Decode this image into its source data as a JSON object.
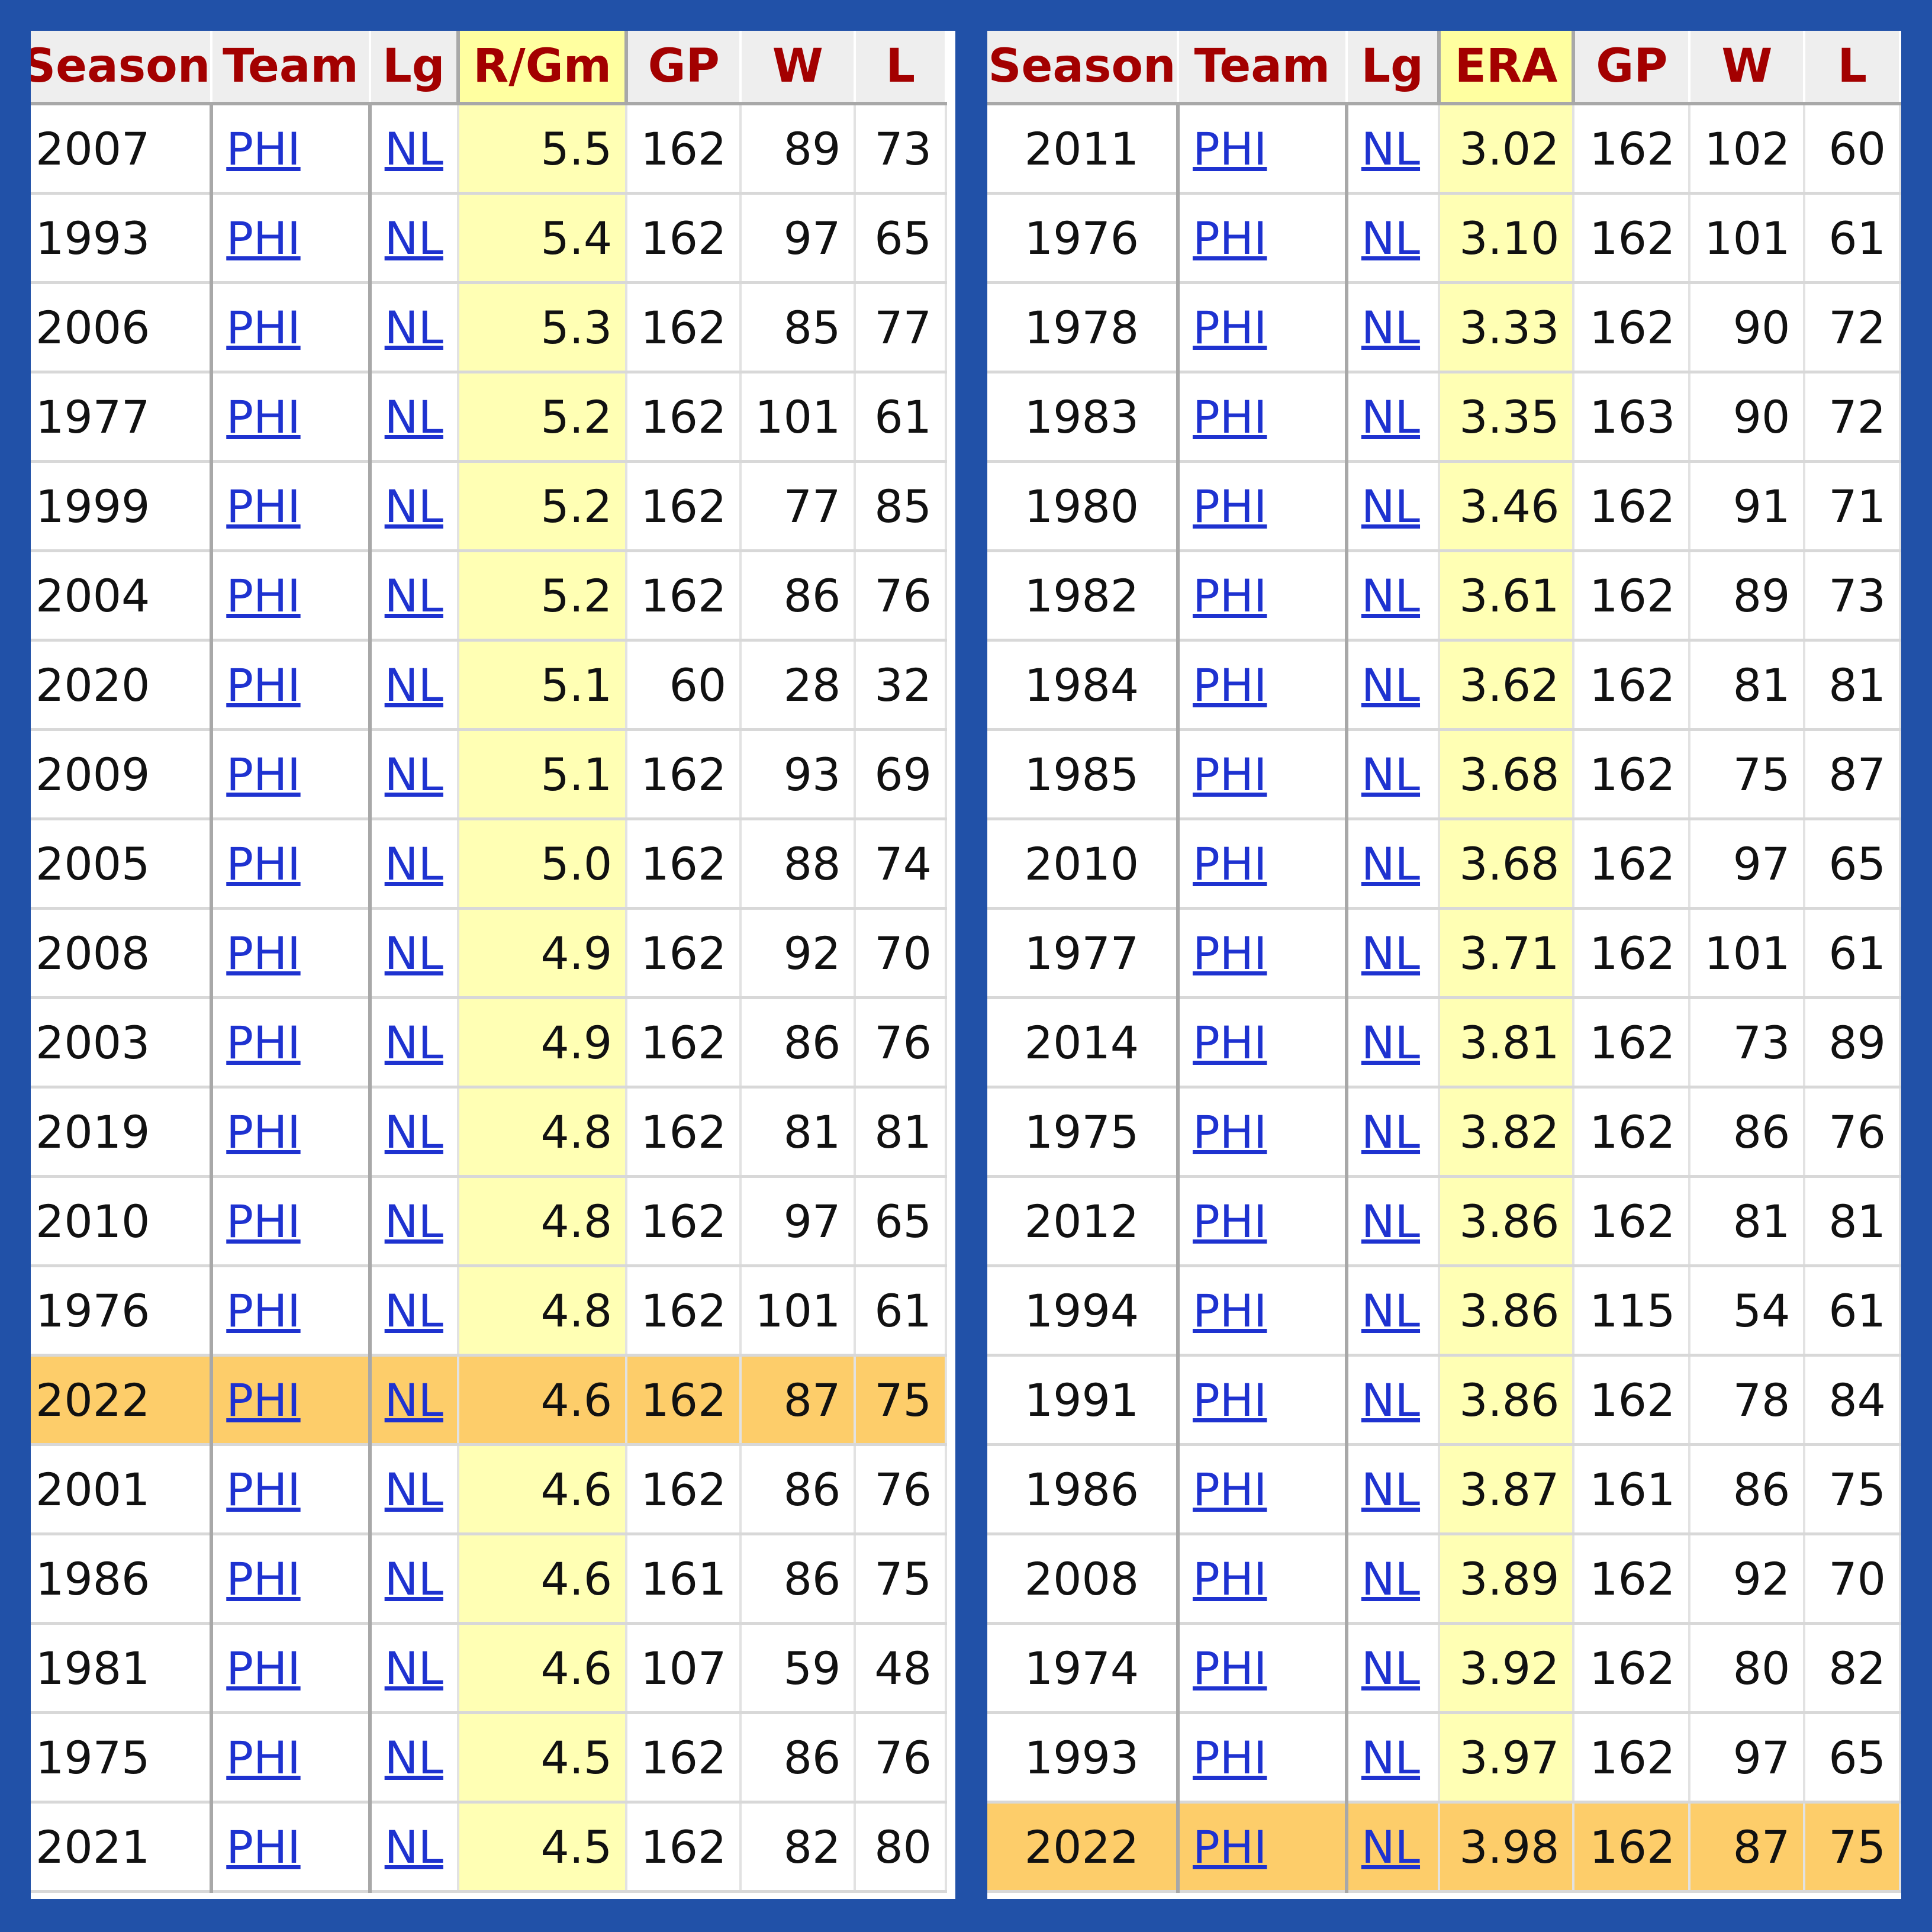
{
  "left_table": {
    "columns": [
      "Season",
      "Team",
      "Lg",
      "R/Gm",
      "GP",
      "W",
      "L"
    ],
    "highlight_season": "2022",
    "rows": [
      {
        "season": "2007",
        "team": "PHI",
        "lg": "NL",
        "stat": "5.5",
        "gp": "162",
        "w": "89",
        "l": "73"
      },
      {
        "season": "1993",
        "team": "PHI",
        "lg": "NL",
        "stat": "5.4",
        "gp": "162",
        "w": "97",
        "l": "65"
      },
      {
        "season": "2006",
        "team": "PHI",
        "lg": "NL",
        "stat": "5.3",
        "gp": "162",
        "w": "85",
        "l": "77"
      },
      {
        "season": "1977",
        "team": "PHI",
        "lg": "NL",
        "stat": "5.2",
        "gp": "162",
        "w": "101",
        "l": "61"
      },
      {
        "season": "1999",
        "team": "PHI",
        "lg": "NL",
        "stat": "5.2",
        "gp": "162",
        "w": "77",
        "l": "85"
      },
      {
        "season": "2004",
        "team": "PHI",
        "lg": "NL",
        "stat": "5.2",
        "gp": "162",
        "w": "86",
        "l": "76"
      },
      {
        "season": "2020",
        "team": "PHI",
        "lg": "NL",
        "stat": "5.1",
        "gp": "60",
        "w": "28",
        "l": "32"
      },
      {
        "season": "2009",
        "team": "PHI",
        "lg": "NL",
        "stat": "5.1",
        "gp": "162",
        "w": "93",
        "l": "69"
      },
      {
        "season": "2005",
        "team": "PHI",
        "lg": "NL",
        "stat": "5.0",
        "gp": "162",
        "w": "88",
        "l": "74"
      },
      {
        "season": "2008",
        "team": "PHI",
        "lg": "NL",
        "stat": "4.9",
        "gp": "162",
        "w": "92",
        "l": "70"
      },
      {
        "season": "2003",
        "team": "PHI",
        "lg": "NL",
        "stat": "4.9",
        "gp": "162",
        "w": "86",
        "l": "76"
      },
      {
        "season": "2019",
        "team": "PHI",
        "lg": "NL",
        "stat": "4.8",
        "gp": "162",
        "w": "81",
        "l": "81"
      },
      {
        "season": "2010",
        "team": "PHI",
        "lg": "NL",
        "stat": "4.8",
        "gp": "162",
        "w": "97",
        "l": "65"
      },
      {
        "season": "1976",
        "team": "PHI",
        "lg": "NL",
        "stat": "4.8",
        "gp": "162",
        "w": "101",
        "l": "61"
      },
      {
        "season": "2022",
        "team": "PHI",
        "lg": "NL",
        "stat": "4.6",
        "gp": "162",
        "w": "87",
        "l": "75"
      },
      {
        "season": "2001",
        "team": "PHI",
        "lg": "NL",
        "stat": "4.6",
        "gp": "162",
        "w": "86",
        "l": "76"
      },
      {
        "season": "1986",
        "team": "PHI",
        "lg": "NL",
        "stat": "4.6",
        "gp": "161",
        "w": "86",
        "l": "75"
      },
      {
        "season": "1981",
        "team": "PHI",
        "lg": "NL",
        "stat": "4.6",
        "gp": "107",
        "w": "59",
        "l": "48"
      },
      {
        "season": "1975",
        "team": "PHI",
        "lg": "NL",
        "stat": "4.5",
        "gp": "162",
        "w": "86",
        "l": "76"
      },
      {
        "season": "2021",
        "team": "PHI",
        "lg": "NL",
        "stat": "4.5",
        "gp": "162",
        "w": "82",
        "l": "80"
      }
    ]
  },
  "right_table": {
    "columns": [
      "Season",
      "Team",
      "Lg",
      "ERA",
      "GP",
      "W",
      "L"
    ],
    "highlight_season": "2022",
    "rows": [
      {
        "season": "2011",
        "team": "PHI",
        "lg": "NL",
        "stat": "3.02",
        "gp": "162",
        "w": "102",
        "l": "60"
      },
      {
        "season": "1976",
        "team": "PHI",
        "lg": "NL",
        "stat": "3.10",
        "gp": "162",
        "w": "101",
        "l": "61"
      },
      {
        "season": "1978",
        "team": "PHI",
        "lg": "NL",
        "stat": "3.33",
        "gp": "162",
        "w": "90",
        "l": "72"
      },
      {
        "season": "1983",
        "team": "PHI",
        "lg": "NL",
        "stat": "3.35",
        "gp": "163",
        "w": "90",
        "l": "72"
      },
      {
        "season": "1980",
        "team": "PHI",
        "lg": "NL",
        "stat": "3.46",
        "gp": "162",
        "w": "91",
        "l": "71"
      },
      {
        "season": "1982",
        "team": "PHI",
        "lg": "NL",
        "stat": "3.61",
        "gp": "162",
        "w": "89",
        "l": "73"
      },
      {
        "season": "1984",
        "team": "PHI",
        "lg": "NL",
        "stat": "3.62",
        "gp": "162",
        "w": "81",
        "l": "81"
      },
      {
        "season": "1985",
        "team": "PHI",
        "lg": "NL",
        "stat": "3.68",
        "gp": "162",
        "w": "75",
        "l": "87"
      },
      {
        "season": "2010",
        "team": "PHI",
        "lg": "NL",
        "stat": "3.68",
        "gp": "162",
        "w": "97",
        "l": "65"
      },
      {
        "season": "1977",
        "team": "PHI",
        "lg": "NL",
        "stat": "3.71",
        "gp": "162",
        "w": "101",
        "l": "61"
      },
      {
        "season": "2014",
        "team": "PHI",
        "lg": "NL",
        "stat": "3.81",
        "gp": "162",
        "w": "73",
        "l": "89"
      },
      {
        "season": "1975",
        "team": "PHI",
        "lg": "NL",
        "stat": "3.82",
        "gp": "162",
        "w": "86",
        "l": "76"
      },
      {
        "season": "2012",
        "team": "PHI",
        "lg": "NL",
        "stat": "3.86",
        "gp": "162",
        "w": "81",
        "l": "81"
      },
      {
        "season": "1994",
        "team": "PHI",
        "lg": "NL",
        "stat": "3.86",
        "gp": "115",
        "w": "54",
        "l": "61"
      },
      {
        "season": "1991",
        "team": "PHI",
        "lg": "NL",
        "stat": "3.86",
        "gp": "162",
        "w": "78",
        "l": "84"
      },
      {
        "season": "1986",
        "team": "PHI",
        "lg": "NL",
        "stat": "3.87",
        "gp": "161",
        "w": "86",
        "l": "75"
      },
      {
        "season": "2008",
        "team": "PHI",
        "lg": "NL",
        "stat": "3.89",
        "gp": "162",
        "w": "92",
        "l": "70"
      },
      {
        "season": "1974",
        "team": "PHI",
        "lg": "NL",
        "stat": "3.92",
        "gp": "162",
        "w": "80",
        "l": "82"
      },
      {
        "season": "1993",
        "team": "PHI",
        "lg": "NL",
        "stat": "3.97",
        "gp": "162",
        "w": "97",
        "l": "65"
      },
      {
        "season": "2022",
        "team": "PHI",
        "lg": "NL",
        "stat": "3.98",
        "gp": "162",
        "w": "87",
        "l": "75"
      }
    ]
  },
  "colors": {
    "background": "#2151a8",
    "header_text": "#a30000",
    "sorted_column": "#ffffa0",
    "highlight_row": "#fdcd6a",
    "link": "#1e32d0"
  }
}
